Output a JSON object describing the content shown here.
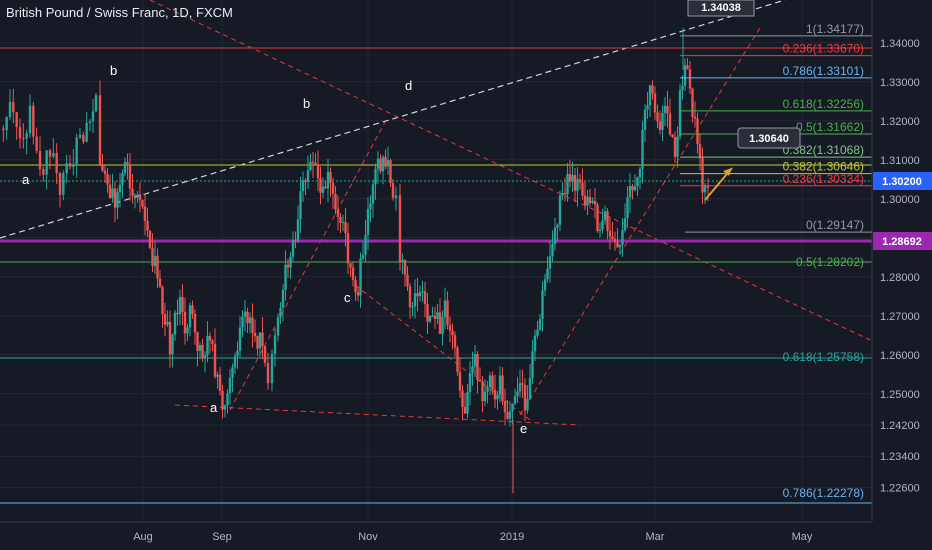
{
  "header": {
    "title": "British Pound / Swiss Franc, 1D, FXCM"
  },
  "chart_data": {
    "type": "candlestick",
    "title": "British Pound / Swiss Franc, 1D, FXCM",
    "ylim": [
      1.218,
      1.3435
    ],
    "y_ticks": [
      "1.34000",
      "1.33000",
      "1.32000",
      "1.31000",
      "1.30000",
      "1.29000",
      "1.28000",
      "1.27000",
      "1.26000",
      "1.25000",
      "1.24200",
      "1.23400",
      "1.22600"
    ],
    "x_ticks": [
      "Aug",
      "Sep",
      "Nov",
      "2019",
      "Mar",
      "May"
    ],
    "price_labels": {
      "last": "1.30200",
      "ma": "1.28692",
      "box_high": "1.34038",
      "box_target": "1.30640"
    },
    "fib_levels": [
      {
        "label": "1(1.34177)",
        "value": 1.34177,
        "color": "#9598a1"
      },
      {
        "label": "0.236(1.33670)",
        "value": 1.3367,
        "color": "#f23645"
      },
      {
        "label": "0.786(1.33101)",
        "value": 1.33101,
        "color": "#64b5f6"
      },
      {
        "label": "0.618(1.32256)",
        "value": 1.32256,
        "color": "#4caf50"
      },
      {
        "label": "0.5(1.31662)",
        "value": 1.31662,
        "color": "#4caf50"
      },
      {
        "label": "0.382(1.31068)",
        "value": 1.31068,
        "color": "#81c784"
      },
      {
        "label": "0.382(1.30646)",
        "value": 1.30646,
        "color": "#c0ca33"
      },
      {
        "label": "0.236(1.30334)",
        "value": 1.30334,
        "color": "#f23645"
      },
      {
        "label": "0(1.29147)",
        "value": 1.29147,
        "color": "#9598a1"
      },
      {
        "label": "0.5(1.28202)",
        "value": 1.28202,
        "color": "#4caf50"
      },
      {
        "label": "0.618(1.25758)",
        "value": 1.25758,
        "color": "#26a69a"
      },
      {
        "label": "0.786(1.22278)",
        "value": 1.22278,
        "color": "#64b5f6"
      }
    ],
    "wave_labels": [
      "a",
      "b",
      "b",
      "d",
      "c",
      "a",
      "e"
    ],
    "close_path": [
      [
        0,
        1.318
      ],
      [
        10,
        1.322
      ],
      [
        20,
        1.314
      ],
      [
        30,
        1.321
      ],
      [
        40,
        1.307
      ],
      [
        50,
        1.312
      ],
      [
        60,
        1.303
      ],
      [
        70,
        1.309
      ],
      [
        80,
        1.315
      ],
      [
        90,
        1.318
      ],
      [
        96,
        1.324
      ],
      [
        100,
        1.31
      ],
      [
        105,
        1.304
      ],
      [
        110,
        1.302
      ],
      [
        115,
        1.298
      ],
      [
        120,
        1.305
      ],
      [
        125,
        1.308
      ],
      [
        130,
        1.303
      ],
      [
        135,
        1.299
      ],
      [
        140,
        1.3
      ],
      [
        145,
        1.293
      ],
      [
        150,
        1.285
      ],
      [
        155,
        1.283
      ],
      [
        160,
        1.275
      ],
      [
        165,
        1.268
      ],
      [
        170,
        1.263
      ],
      [
        175,
        1.27
      ],
      [
        180,
        1.272
      ],
      [
        185,
        1.268
      ],
      [
        190,
        1.272
      ],
      [
        195,
        1.265
      ],
      [
        200,
        1.262
      ],
      [
        205,
        1.259
      ],
      [
        210,
        1.265
      ],
      [
        215,
        1.256
      ],
      [
        220,
        1.25
      ],
      [
        225,
        1.247
      ],
      [
        230,
        1.252
      ],
      [
        235,
        1.259
      ],
      [
        240,
        1.266
      ],
      [
        245,
        1.272
      ],
      [
        250,
        1.268
      ],
      [
        255,
        1.262
      ],
      [
        260,
        1.265
      ],
      [
        265,
        1.258
      ],
      [
        268,
        1.252
      ],
      [
        272,
        1.26
      ],
      [
        278,
        1.27
      ],
      [
        283,
        1.278
      ],
      [
        288,
        1.284
      ],
      [
        293,
        1.288
      ],
      [
        298,
        1.296
      ],
      [
        303,
        1.305
      ],
      [
        308,
        1.306
      ],
      [
        313,
        1.31
      ],
      [
        318,
        1.303
      ],
      [
        323,
        1.304
      ],
      [
        328,
        1.306
      ],
      [
        333,
        1.299
      ],
      [
        338,
        1.295
      ],
      [
        343,
        1.292
      ],
      [
        348,
        1.285
      ],
      [
        353,
        1.28
      ],
      [
        358,
        1.277
      ],
      [
        363,
        1.288
      ],
      [
        368,
        1.295
      ],
      [
        373,
        1.303
      ],
      [
        378,
        1.308
      ],
      [
        383,
        1.312
      ],
      [
        388,
        1.309
      ],
      [
        393,
        1.302
      ],
      [
        396,
        1.3
      ],
      [
        400,
        1.286
      ],
      [
        405,
        1.28
      ],
      [
        410,
        1.273
      ],
      [
        415,
        1.275
      ],
      [
        420,
        1.277
      ],
      [
        425,
        1.274
      ],
      [
        430,
        1.268
      ],
      [
        435,
        1.272
      ],
      [
        440,
        1.267
      ],
      [
        445,
        1.271
      ],
      [
        450,
        1.265
      ],
      [
        455,
        1.262
      ],
      [
        460,
        1.252
      ],
      [
        465,
        1.246
      ],
      [
        470,
        1.254
      ],
      [
        475,
        1.258
      ],
      [
        480,
        1.252
      ],
      [
        485,
        1.249
      ],
      [
        490,
        1.253
      ],
      [
        495,
        1.249
      ],
      [
        500,
        1.254
      ],
      [
        505,
        1.247
      ],
      [
        510,
        1.243
      ],
      [
        515,
        1.25
      ],
      [
        520,
        1.253
      ],
      [
        525,
        1.247
      ],
      [
        530,
        1.255
      ],
      [
        535,
        1.262
      ],
      [
        540,
        1.27
      ],
      [
        545,
        1.278
      ],
      [
        550,
        1.285
      ],
      [
        555,
        1.292
      ],
      [
        560,
        1.298
      ],
      [
        565,
        1.303
      ],
      [
        570,
        1.307
      ],
      [
        575,
        1.302
      ],
      [
        580,
        1.305
      ],
      [
        585,
        1.299
      ],
      [
        590,
        1.297
      ],
      [
        595,
        1.296
      ],
      [
        600,
        1.291
      ],
      [
        605,
        1.297
      ],
      [
        610,
        1.292
      ],
      [
        615,
        1.289
      ],
      [
        620,
        1.291
      ],
      [
        625,
        1.297
      ],
      [
        630,
        1.302
      ],
      [
        635,
        1.305
      ],
      [
        640,
        1.309
      ],
      [
        645,
        1.322
      ],
      [
        650,
        1.328
      ],
      [
        655,
        1.321
      ],
      [
        660,
        1.316
      ],
      [
        665,
        1.325
      ],
      [
        670,
        1.318
      ],
      [
        675,
        1.309
      ],
      [
        680,
        1.325
      ],
      [
        685,
        1.334
      ],
      [
        690,
        1.328
      ],
      [
        695,
        1.319
      ],
      [
        700,
        1.308
      ],
      [
        705,
        1.301
      ],
      [
        708,
        1.3
      ]
    ]
  }
}
